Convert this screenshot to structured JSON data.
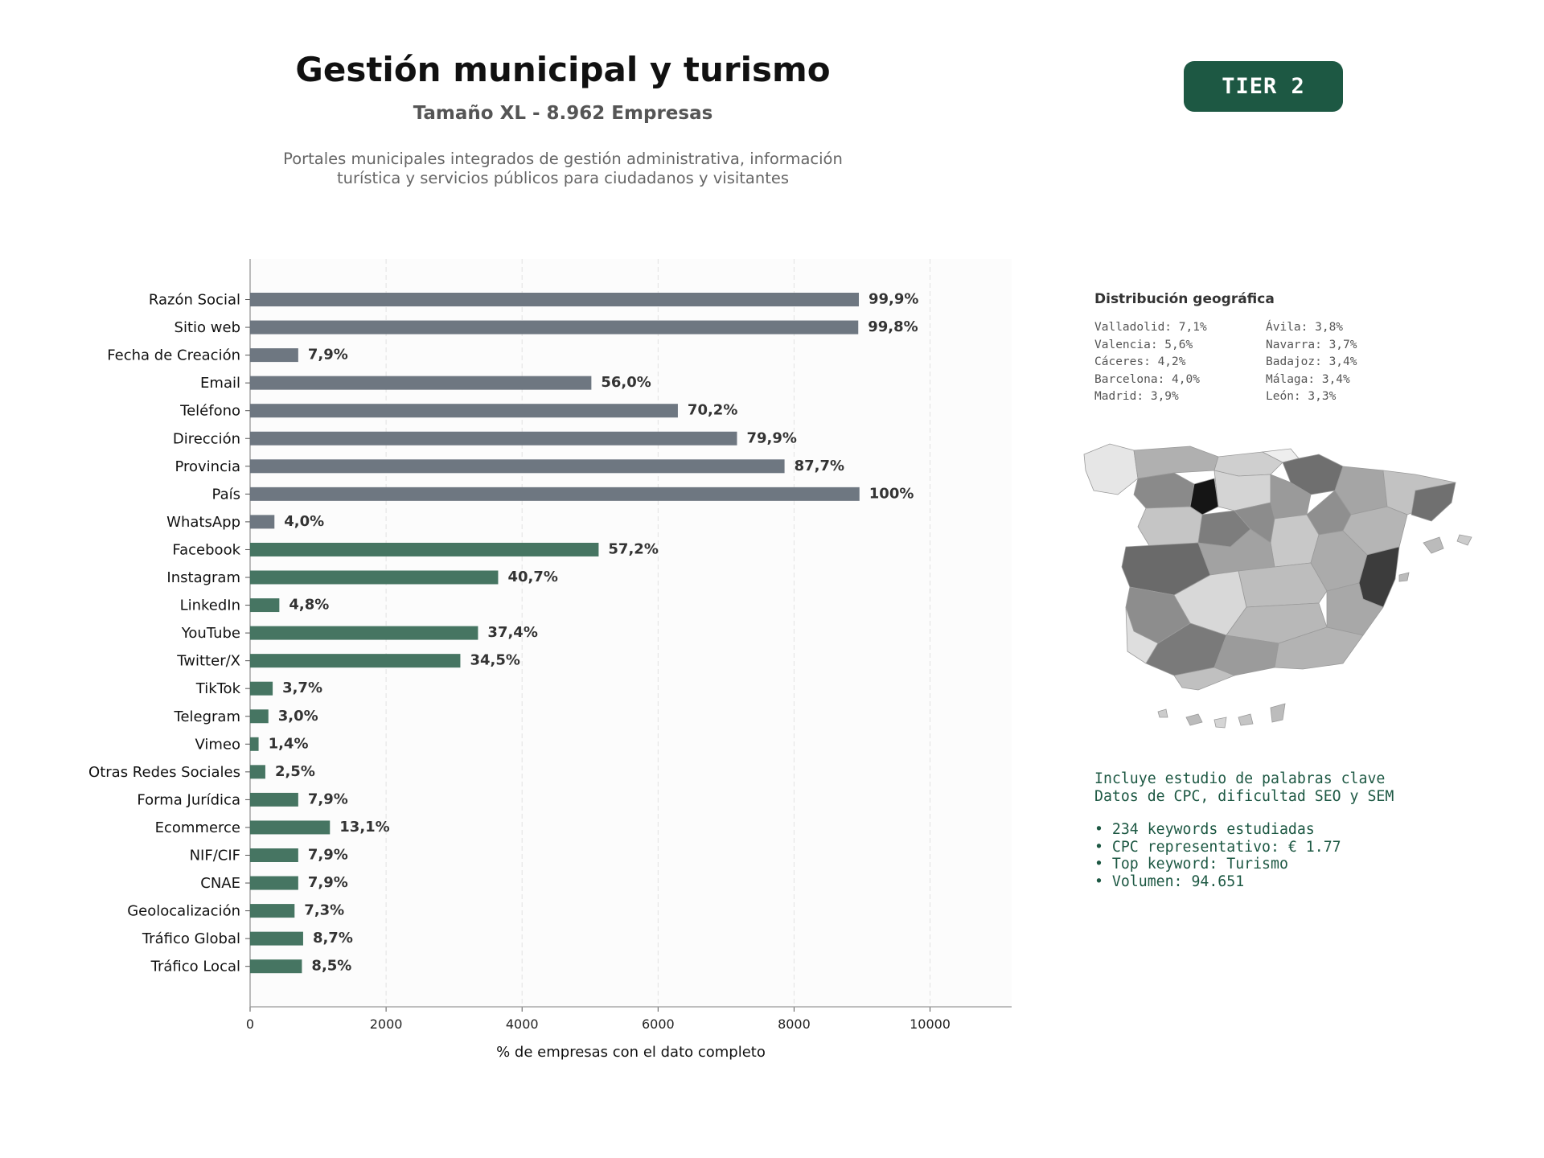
{
  "header": {
    "title": "Gestión municipal y turismo",
    "subtitle": "Tamaño XL - 8.962 Empresas",
    "description_lines": [
      "Portales municipales integrados de gestión administrativa, información",
      "turística y servicios públicos para ciudadanos y visitantes"
    ],
    "tier_badge": "TIER 2"
  },
  "chart_data": {
    "type": "bar",
    "orientation": "horizontal",
    "categories": [
      "Razón Social",
      "Sitio web",
      "Fecha de Creación",
      "Email",
      "Teléfono",
      "Dirección",
      "Provincia",
      "País",
      "WhatsApp",
      "Facebook",
      "Instagram",
      "LinkedIn",
      "YouTube",
      "Twitter/X",
      "TikTok",
      "Telegram",
      "Vimeo",
      "Otras Redes Sociales",
      "Forma Jurídica",
      "Ecommerce",
      "NIF/CIF",
      "CNAE",
      "Geolocalización",
      "Tráfico Global",
      "Tráfico Local"
    ],
    "values": [
      8953,
      8944,
      708,
      5019,
      6291,
      7161,
      7860,
      8962,
      358,
      5126,
      3648,
      430,
      3352,
      3092,
      332,
      269,
      125,
      224,
      708,
      1174,
      708,
      708,
      654,
      780,
      762
    ],
    "labels": [
      "99,9%",
      "99,8%",
      "7,9%",
      "56,0%",
      "70,2%",
      "79,9%",
      "87,7%",
      "100%",
      "4,0%",
      "57,2%",
      "40,7%",
      "4,8%",
      "37,4%",
      "34,5%",
      "3,7%",
      "3,0%",
      "1,4%",
      "2,5%",
      "7,9%",
      "13,1%",
      "7,9%",
      "7,9%",
      "7,3%",
      "8,7%",
      "8,5%"
    ],
    "groups": [
      "base",
      "base",
      "base",
      "base",
      "base",
      "base",
      "base",
      "base",
      "base",
      "extra",
      "extra",
      "extra",
      "extra",
      "extra",
      "extra",
      "extra",
      "extra",
      "extra",
      "extra",
      "extra",
      "extra",
      "extra",
      "extra",
      "extra",
      "extra"
    ],
    "colors": {
      "base": "#6e7781",
      "extra": "#467562"
    },
    "xlabel": "% de empresas con el dato completo",
    "xlim": [
      0,
      11200
    ],
    "xticks": [
      "0",
      "2000",
      "4000",
      "6000",
      "8000",
      "10000"
    ],
    "grid": "vertical dashed"
  },
  "geo": {
    "title": "Distribución geográfica",
    "items": [
      "Valladolid: 7,1%",
      "Ávila: 3,8%",
      "Valencia: 5,6%",
      "Navarra: 3,7%",
      "Cáceres: 4,2%",
      "Badajoz: 3,4%",
      "Barcelona: 4,0%",
      "Málaga: 3,4%",
      "Madrid: 3,9%",
      "León: 3,3%"
    ],
    "map": "choropleth-map-spain"
  },
  "seo": {
    "line1": "Incluye estudio de palabras clave",
    "line2": "Datos de CPC, dificultad SEO y SEM",
    "bullets": [
      "• 234 keywords estudiadas",
      "• CPC representativo: € 1.77",
      "• Top keyword: Turismo",
      "• Volumen: 94.651"
    ]
  }
}
